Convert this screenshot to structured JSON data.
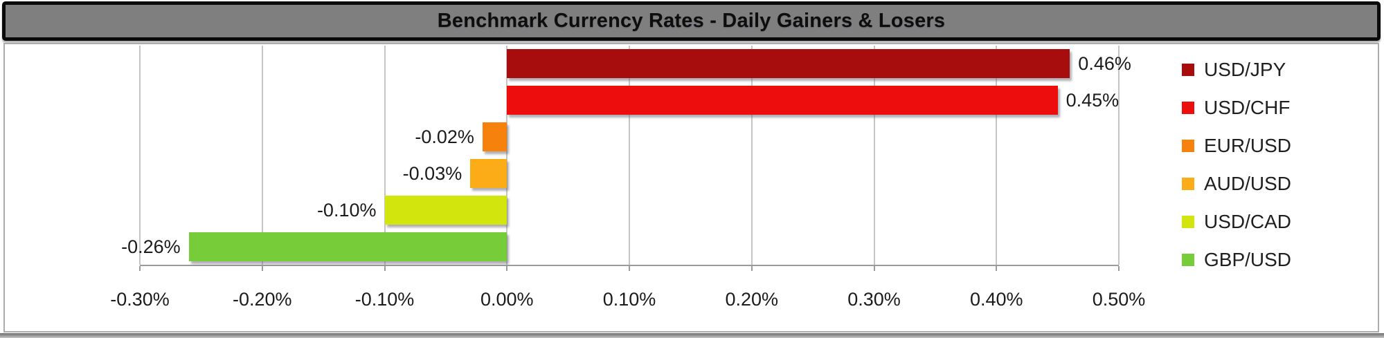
{
  "title_bar": {
    "title": "Benchmark Currency Rates - Daily Gainers & Losers",
    "bg_color": "#7F7F7F",
    "border_color": "#000000",
    "text_color": "#0D0D0D"
  },
  "chart_data": {
    "type": "bar",
    "orientation": "horizontal",
    "title": "Benchmark Currency Rates - Daily Gainers & Losers",
    "categories": [
      "USD/JPY",
      "USD/CHF",
      "EUR/USD",
      "AUD/USD",
      "USD/CAD",
      "GBP/USD"
    ],
    "values": [
      0.46,
      0.45,
      -0.02,
      -0.03,
      -0.1,
      -0.26
    ],
    "value_labels": [
      "0.46%",
      "0.45%",
      "-0.02%",
      "-0.03%",
      "-0.10%",
      "-0.26%"
    ],
    "bar_colors": [
      "#A80D0D",
      "#EE0D0D",
      "#F6820D",
      "#FBAC16",
      "#D2E60D",
      "#76CD39"
    ],
    "xlabel": "",
    "ylabel": "",
    "xlim": [
      -0.3,
      0.5
    ],
    "x_tick_labels": [
      "-0.30%",
      "-0.20%",
      "-0.10%",
      "0.00%",
      "0.10%",
      "0.20%",
      "0.30%",
      "0.40%",
      "0.50%"
    ],
    "x_tick_values": [
      -0.3,
      -0.2,
      -0.1,
      0.0,
      0.1,
      0.2,
      0.3,
      0.4,
      0.5
    ],
    "grid": true,
    "legend_position": "right",
    "legend_entries": [
      {
        "label": "USD/JPY",
        "color": "#A80D0D"
      },
      {
        "label": "USD/CHF",
        "color": "#EE0D0D"
      },
      {
        "label": "EUR/USD",
        "color": "#F6820D"
      },
      {
        "label": "AUD/USD",
        "color": "#FBAC16"
      },
      {
        "label": "USD/CAD",
        "color": "#D2E60D"
      },
      {
        "label": "GBP/USD",
        "color": "#76CD39"
      }
    ],
    "gridline_color": "#C5C5C5",
    "axis_color": "#9B9B9B"
  }
}
